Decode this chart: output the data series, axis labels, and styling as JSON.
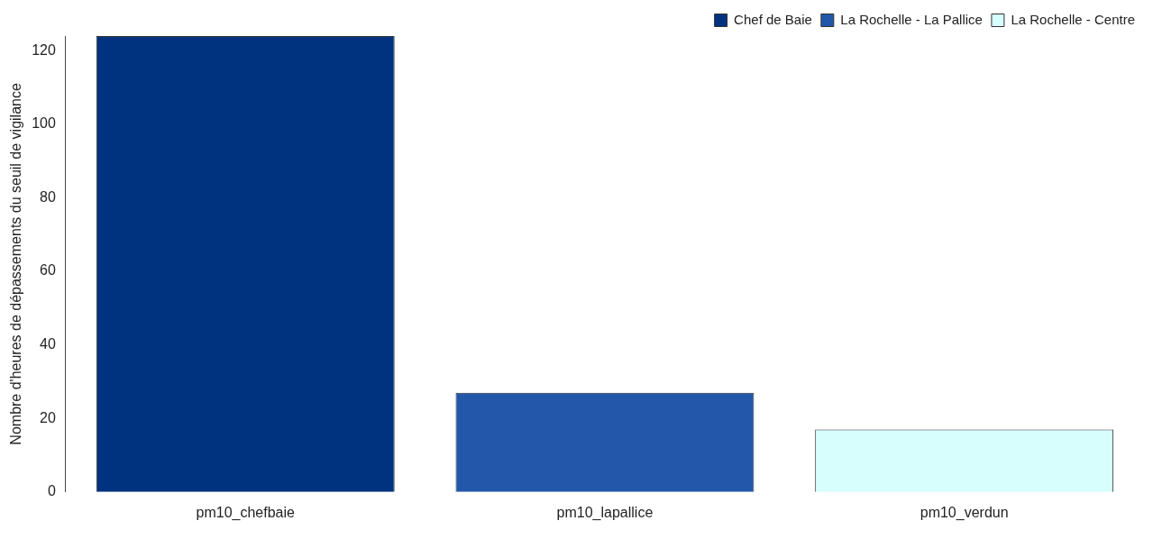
{
  "chart_data": {
    "type": "bar",
    "ylabel": "Nombre d'heures de dépassements du seuil de vigilance",
    "categories": [
      "pm10_chefbaie",
      "pm10_lapallice",
      "pm10_verdun"
    ],
    "series": [
      {
        "name": "Chef de Baie",
        "color": "#00337f",
        "values": [
          124,
          null,
          null
        ]
      },
      {
        "name": "La Rochelle - La Pallice",
        "color": "#2257aa",
        "values": [
          null,
          27,
          null
        ]
      },
      {
        "name": "La Rochelle - Centre",
        "color": "#d7fdfd",
        "values": [
          null,
          null,
          17
        ]
      }
    ],
    "ylim": [
      0,
      124
    ],
    "yticks": [
      0,
      20,
      40,
      60,
      80,
      100,
      120
    ],
    "grid": false,
    "legend": "top right"
  }
}
